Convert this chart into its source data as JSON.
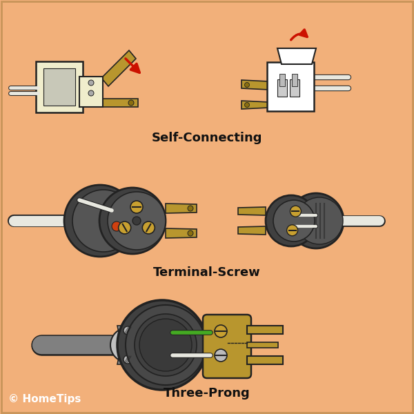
{
  "background_color": "#F2B07A",
  "border_color": "#C8955A",
  "labels": {
    "self_connecting": "Self-Connecting",
    "terminal_screw": "Terminal-Screw",
    "three_prong": "Three-Prong",
    "copyright": "© HomeTips"
  },
  "label_fontsize": 13,
  "copyright_fontsize": 11,
  "colors": {
    "dark_gray": "#3A3A3A",
    "medium_gray": "#555555",
    "light_gray": "#888888",
    "gold": "#B8962E",
    "dark_gold": "#8A6E10",
    "cream": "#F0EDCC",
    "white": "#FFFFFF",
    "off_white": "#E8E8E0",
    "red": "#CC1100",
    "orange": "#D04010",
    "green": "#44AA22",
    "silver": "#AAAAAA",
    "wire_white": "#E0E0DC",
    "wire_gray": "#909090",
    "screw_gold": "#C8A030",
    "outline": "#222222",
    "plug_face": "#585858",
    "plug_back": "#404040"
  }
}
